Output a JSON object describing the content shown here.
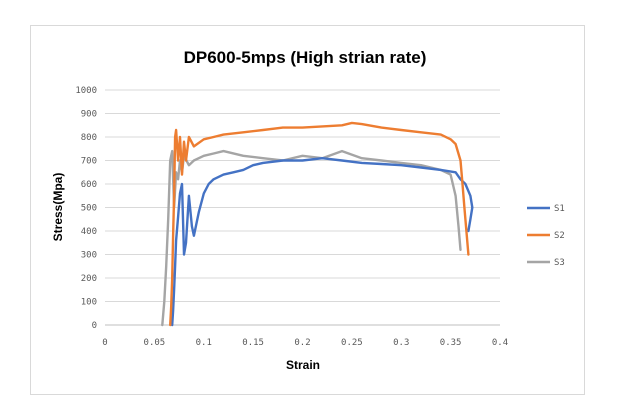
{
  "chart_data": {
    "type": "line",
    "title": "DP600-5mps (High strian rate)",
    "xlabel": "Strain",
    "ylabel": "Stress(Mpa)",
    "xlim": [
      0,
      0.4
    ],
    "ylim": [
      0,
      1000
    ],
    "x_ticks": [
      "0",
      "0.05",
      "0.1",
      "0.15",
      "0.2",
      "0.25",
      "0.3",
      "0.35",
      "0.4"
    ],
    "y_ticks": [
      "0",
      "100",
      "200",
      "300",
      "400",
      "500",
      "600",
      "700",
      "800",
      "900",
      "1000"
    ],
    "grid": "horizontal",
    "legend_position": "right",
    "series": [
      {
        "name": "S1",
        "color": "#4472c4",
        "x": [
          0.068,
          0.069,
          0.07,
          0.071,
          0.072,
          0.074,
          0.076,
          0.078,
          0.08,
          0.082,
          0.085,
          0.088,
          0.09,
          0.095,
          0.1,
          0.105,
          0.11,
          0.12,
          0.13,
          0.14,
          0.15,
          0.16,
          0.18,
          0.2,
          0.22,
          0.24,
          0.26,
          0.28,
          0.3,
          0.32,
          0.34,
          0.355,
          0.36,
          0.365,
          0.37,
          0.372,
          0.37,
          0.368
        ],
        "y": [
          0,
          60,
          150,
          250,
          360,
          460,
          560,
          600,
          300,
          350,
          550,
          420,
          380,
          480,
          560,
          600,
          620,
          640,
          650,
          660,
          680,
          690,
          700,
          700,
          710,
          700,
          690,
          685,
          680,
          670,
          660,
          650,
          620,
          600,
          550,
          500,
          450,
          400
        ]
      },
      {
        "name": "S2",
        "color": "#ed7d31",
        "x": [
          0.066,
          0.067,
          0.068,
          0.069,
          0.07,
          0.071,
          0.072,
          0.074,
          0.076,
          0.078,
          0.08,
          0.082,
          0.085,
          0.09,
          0.1,
          0.11,
          0.12,
          0.14,
          0.16,
          0.18,
          0.2,
          0.22,
          0.24,
          0.25,
          0.26,
          0.28,
          0.3,
          0.32,
          0.34,
          0.35,
          0.355,
          0.36,
          0.362,
          0.364,
          0.366,
          0.368
        ],
        "y": [
          0,
          80,
          200,
          380,
          550,
          800,
          830,
          700,
          800,
          640,
          780,
          700,
          800,
          760,
          790,
          800,
          810,
          820,
          830,
          840,
          840,
          845,
          850,
          860,
          855,
          840,
          830,
          820,
          810,
          790,
          770,
          700,
          600,
          500,
          400,
          300
        ]
      },
      {
        "name": "S3",
        "color": "#a5a5a5",
        "x": [
          0.058,
          0.06,
          0.062,
          0.064,
          0.066,
          0.068,
          0.07,
          0.072,
          0.074,
          0.076,
          0.078,
          0.08,
          0.085,
          0.09,
          0.1,
          0.11,
          0.12,
          0.14,
          0.16,
          0.18,
          0.2,
          0.22,
          0.24,
          0.26,
          0.28,
          0.3,
          0.32,
          0.34,
          0.35,
          0.355,
          0.358,
          0.36
        ],
        "y": [
          0,
          100,
          250,
          450,
          700,
          740,
          500,
          650,
          620,
          700,
          650,
          720,
          680,
          700,
          720,
          730,
          740,
          720,
          710,
          700,
          720,
          710,
          740,
          710,
          700,
          690,
          680,
          660,
          640,
          550,
          420,
          320
        ]
      }
    ]
  }
}
